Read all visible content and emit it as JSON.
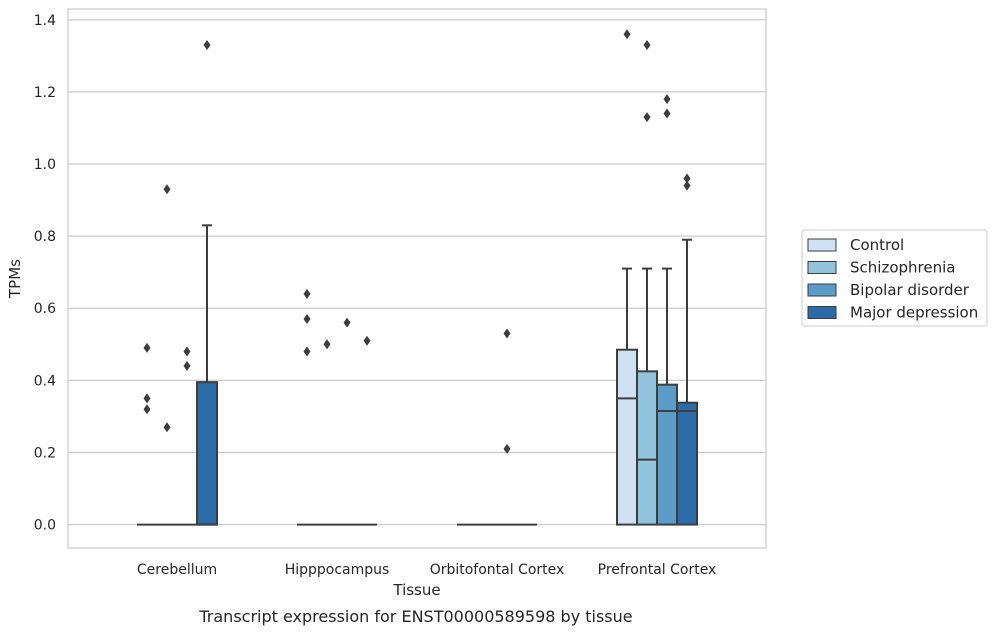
{
  "chart_data": {
    "type": "box",
    "xlabel": "Tissue",
    "ylabel": "TPMs",
    "caption": "Transcript expression for ENST00000589598 by tissue",
    "ylim": [
      -0.065,
      1.43
    ],
    "yticks": [
      0.0,
      0.2,
      0.4,
      0.6,
      0.8,
      1.0,
      1.2,
      1.4
    ],
    "ytick_labels": [
      "0.0",
      "0.2",
      "0.4",
      "0.6",
      "0.8",
      "1.0",
      "1.2",
      "1.4"
    ],
    "grid": "horizontal",
    "legend_position": "right",
    "categories": [
      "Cerebellum",
      "Hipppocampus",
      "Orbitofontal Cortex",
      "Prefrontal Cortex"
    ],
    "series": [
      {
        "name": "Control",
        "color": "#cfe1f2",
        "boxes": [
          {
            "category": "Cerebellum",
            "q1": 0.0,
            "median": 0.0,
            "q3": 0.0,
            "whisker_low": 0.0,
            "whisker_high": 0.0,
            "outliers": [
              0.49,
              0.35,
              0.32
            ]
          },
          {
            "category": "Hipppocampus",
            "q1": 0.0,
            "median": 0.0,
            "q3": 0.0,
            "whisker_low": 0.0,
            "whisker_high": 0.0,
            "outliers": [
              0.64,
              0.57,
              0.48
            ]
          },
          {
            "category": "Orbitofontal Cortex",
            "q1": 0.0,
            "median": 0.0,
            "q3": 0.0,
            "whisker_low": 0.0,
            "whisker_high": 0.0,
            "outliers": []
          },
          {
            "category": "Prefrontal Cortex",
            "q1": 0.0,
            "median": 0.35,
            "q3": 0.485,
            "whisker_low": 0.0,
            "whisker_high": 0.71,
            "outliers": [
              1.36
            ]
          }
        ]
      },
      {
        "name": "Schizophrenia",
        "color": "#93c4de",
        "boxes": [
          {
            "category": "Cerebellum",
            "q1": 0.0,
            "median": 0.0,
            "q3": 0.0,
            "whisker_low": 0.0,
            "whisker_high": 0.0,
            "outliers": [
              0.93,
              0.27
            ]
          },
          {
            "category": "Hipppocampus",
            "q1": 0.0,
            "median": 0.0,
            "q3": 0.0,
            "whisker_low": 0.0,
            "whisker_high": 0.0,
            "outliers": [
              0.5
            ]
          },
          {
            "category": "Orbitofontal Cortex",
            "q1": 0.0,
            "median": 0.0,
            "q3": 0.0,
            "whisker_low": 0.0,
            "whisker_high": 0.0,
            "outliers": []
          },
          {
            "category": "Prefrontal Cortex",
            "q1": 0.0,
            "median": 0.18,
            "q3": 0.425,
            "whisker_low": 0.0,
            "whisker_high": 0.71,
            "outliers": [
              1.33,
              1.13
            ]
          }
        ]
      },
      {
        "name": "Bipolar disorder",
        "color": "#5b9bc8",
        "boxes": [
          {
            "category": "Cerebellum",
            "q1": 0.0,
            "median": 0.0,
            "q3": 0.0,
            "whisker_low": 0.0,
            "whisker_high": 0.0,
            "outliers": [
              0.48,
              0.44
            ]
          },
          {
            "category": "Hipppocampus",
            "q1": 0.0,
            "median": 0.0,
            "q3": 0.0,
            "whisker_low": 0.0,
            "whisker_high": 0.0,
            "outliers": [
              0.56
            ]
          },
          {
            "category": "Orbitofontal Cortex",
            "q1": 0.0,
            "median": 0.0,
            "q3": 0.0,
            "whisker_low": 0.0,
            "whisker_high": 0.0,
            "outliers": [
              0.53,
              0.21
            ]
          },
          {
            "category": "Prefrontal Cortex",
            "q1": 0.0,
            "median": 0.315,
            "q3": 0.388,
            "whisker_low": 0.0,
            "whisker_high": 0.71,
            "outliers": [
              1.18,
              1.14
            ]
          }
        ]
      },
      {
        "name": "Major depression",
        "color": "#2b6ca8",
        "boxes": [
          {
            "category": "Cerebellum",
            "q1": 0.0,
            "median": 0.0,
            "q3": 0.395,
            "whisker_low": 0.0,
            "whisker_high": 0.83,
            "outliers": [
              1.33
            ]
          },
          {
            "category": "Hipppocampus",
            "q1": 0.0,
            "median": 0.0,
            "q3": 0.0,
            "whisker_low": 0.0,
            "whisker_high": 0.0,
            "outliers": [
              0.51
            ]
          },
          {
            "category": "Orbitofontal Cortex",
            "q1": 0.0,
            "median": 0.0,
            "q3": 0.0,
            "whisker_low": 0.0,
            "whisker_high": 0.0,
            "outliers": []
          },
          {
            "category": "Prefrontal Cortex",
            "q1": 0.0,
            "median": 0.315,
            "q3": 0.338,
            "whisker_low": 0.0,
            "whisker_high": 0.79,
            "outliers": [
              0.96,
              0.94
            ]
          }
        ]
      }
    ]
  }
}
